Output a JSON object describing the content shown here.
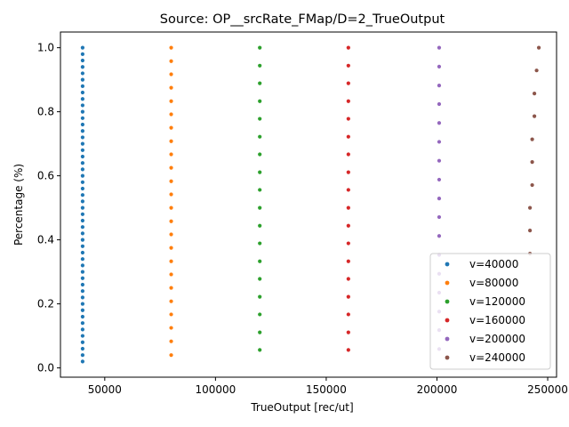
{
  "chart_data": {
    "type": "scatter",
    "title": "Source: OP__srcRate_FMap/D=2_TrueOutput",
    "xlabel": "TrueOutput [rec/ut]",
    "ylabel": "Percentage (%)",
    "xlim": [
      30000,
      254000
    ],
    "ylim": [
      -0.029,
      1.049
    ],
    "xticks": [
      50000,
      100000,
      150000,
      200000,
      250000
    ],
    "xtick_labels": [
      "50000",
      "100000",
      "150000",
      "200000",
      "250000"
    ],
    "yticks": [
      0.0,
      0.2,
      0.4,
      0.6,
      0.8,
      1.0
    ],
    "ytick_labels": [
      "0.0",
      "0.2",
      "0.4",
      "0.6",
      "0.8",
      "1.0"
    ],
    "grid": false,
    "legend_position": "lower-right",
    "colors": [
      "#1f77b4",
      "#ff7f0e",
      "#2ca02c",
      "#d62728",
      "#9467bd",
      "#8c564b"
    ],
    "series": [
      {
        "name": "v=40000",
        "points": [
          [
            40000,
            0.02
          ],
          [
            40000,
            0.04
          ],
          [
            40000,
            0.06
          ],
          [
            40000,
            0.08
          ],
          [
            40000,
            0.1
          ],
          [
            40000,
            0.12
          ],
          [
            40000,
            0.14
          ],
          [
            40000,
            0.16
          ],
          [
            40000,
            0.18
          ],
          [
            40000,
            0.2
          ],
          [
            40000,
            0.22
          ],
          [
            40000,
            0.24
          ],
          [
            40000,
            0.26
          ],
          [
            40000,
            0.28
          ],
          [
            40000,
            0.3
          ],
          [
            40000,
            0.32
          ],
          [
            40000,
            0.34
          ],
          [
            40000,
            0.36
          ],
          [
            40000,
            0.38
          ],
          [
            40000,
            0.4
          ],
          [
            40000,
            0.42
          ],
          [
            40000,
            0.44
          ],
          [
            40000,
            0.46
          ],
          [
            40000,
            0.48
          ],
          [
            40000,
            0.5
          ],
          [
            40000,
            0.52
          ],
          [
            40000,
            0.54
          ],
          [
            40000,
            0.56
          ],
          [
            40000,
            0.58
          ],
          [
            40000,
            0.6
          ],
          [
            40000,
            0.62
          ],
          [
            40000,
            0.64
          ],
          [
            40000,
            0.66
          ],
          [
            40000,
            0.68
          ],
          [
            40000,
            0.7
          ],
          [
            40000,
            0.72
          ],
          [
            40000,
            0.74
          ],
          [
            40000,
            0.76
          ],
          [
            40000,
            0.78
          ],
          [
            40000,
            0.8
          ],
          [
            40000,
            0.82
          ],
          [
            40000,
            0.84
          ],
          [
            40000,
            0.86
          ],
          [
            40000,
            0.88
          ],
          [
            40000,
            0.9
          ],
          [
            40000,
            0.92
          ],
          [
            40000,
            0.94
          ],
          [
            40000,
            0.96
          ],
          [
            40000,
            0.98
          ],
          [
            40000,
            1.0
          ]
        ]
      },
      {
        "name": "v=80000",
        "points": [
          [
            80000,
            0.04
          ],
          [
            80000,
            0.083
          ],
          [
            80000,
            0.125
          ],
          [
            80000,
            0.167
          ],
          [
            80000,
            0.208
          ],
          [
            80000,
            0.25
          ],
          [
            80000,
            0.292
          ],
          [
            80000,
            0.333
          ],
          [
            80000,
            0.375
          ],
          [
            80000,
            0.417
          ],
          [
            80000,
            0.458
          ],
          [
            80000,
            0.5
          ],
          [
            80000,
            0.542
          ],
          [
            80000,
            0.583
          ],
          [
            80000,
            0.625
          ],
          [
            80000,
            0.667
          ],
          [
            80000,
            0.708
          ],
          [
            80000,
            0.75
          ],
          [
            80000,
            0.792
          ],
          [
            80000,
            0.833
          ],
          [
            80000,
            0.875
          ],
          [
            80000,
            0.917
          ],
          [
            80000,
            0.958
          ],
          [
            80000,
            1.0
          ]
        ]
      },
      {
        "name": "v=120000",
        "points": [
          [
            120000,
            0.056
          ],
          [
            120000,
            0.111
          ],
          [
            120000,
            0.167
          ],
          [
            120000,
            0.222
          ],
          [
            120000,
            0.278
          ],
          [
            120000,
            0.333
          ],
          [
            120000,
            0.389
          ],
          [
            120000,
            0.444
          ],
          [
            120000,
            0.5
          ],
          [
            120000,
            0.556
          ],
          [
            120000,
            0.611
          ],
          [
            120000,
            0.667
          ],
          [
            120000,
            0.722
          ],
          [
            120000,
            0.778
          ],
          [
            120000,
            0.833
          ],
          [
            120000,
            0.889
          ],
          [
            120000,
            0.944
          ],
          [
            120000,
            1.0
          ]
        ]
      },
      {
        "name": "v=160000",
        "points": [
          [
            160000,
            0.056
          ],
          [
            160000,
            0.111
          ],
          [
            160000,
            0.167
          ],
          [
            160000,
            0.222
          ],
          [
            160000,
            0.278
          ],
          [
            160000,
            0.333
          ],
          [
            160000,
            0.389
          ],
          [
            160000,
            0.444
          ],
          [
            160000,
            0.5
          ],
          [
            160000,
            0.556
          ],
          [
            160000,
            0.611
          ],
          [
            160000,
            0.667
          ],
          [
            160000,
            0.722
          ],
          [
            160000,
            0.778
          ],
          [
            160000,
            0.833
          ],
          [
            160000,
            0.889
          ],
          [
            160000,
            0.944
          ],
          [
            160000,
            1.0
          ]
        ]
      },
      {
        "name": "v=200000",
        "points": [
          [
            201000,
            0.059
          ],
          [
            201000,
            0.118
          ],
          [
            201000,
            0.176
          ],
          [
            201000,
            0.235
          ],
          [
            201000,
            0.294
          ],
          [
            201000,
            0.353
          ],
          [
            201000,
            0.412
          ],
          [
            201000,
            0.471
          ],
          [
            201000,
            0.529
          ],
          [
            201000,
            0.588
          ],
          [
            201000,
            0.647
          ],
          [
            201000,
            0.706
          ],
          [
            201000,
            0.765
          ],
          [
            201000,
            0.824
          ],
          [
            201000,
            0.882
          ],
          [
            201000,
            0.941
          ],
          [
            201000,
            1.0
          ]
        ]
      },
      {
        "name": "v=240000",
        "points": [
          [
            242000,
            0.357
          ],
          [
            242000,
            0.429
          ],
          [
            242000,
            0.5
          ],
          [
            243000,
            0.571
          ],
          [
            243000,
            0.643
          ],
          [
            243000,
            0.714
          ],
          [
            244000,
            0.786
          ],
          [
            244000,
            0.857
          ],
          [
            245000,
            0.929
          ],
          [
            246000,
            1.0
          ]
        ]
      }
    ]
  }
}
